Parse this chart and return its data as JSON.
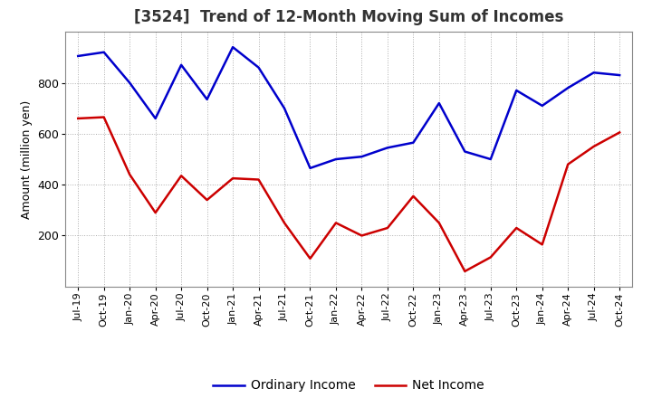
{
  "title": "[3524]  Trend of 12-Month Moving Sum of Incomes",
  "ylabel": "Amount (million yen)",
  "background_color": "#ffffff",
  "plot_bg_color": "#ffffff",
  "grid_color": "#999999",
  "ordinary_income_color": "#0000cc",
  "net_income_color": "#cc0000",
  "line_width": 1.8,
  "x_labels": [
    "Jul-19",
    "Oct-19",
    "Jan-20",
    "Apr-20",
    "Jul-20",
    "Oct-20",
    "Jan-21",
    "Apr-21",
    "Jul-21",
    "Oct-21",
    "Jan-22",
    "Apr-22",
    "Jul-22",
    "Oct-22",
    "Jan-23",
    "Apr-23",
    "Jul-23",
    "Oct-23",
    "Jan-24",
    "Apr-24",
    "Jul-24",
    "Oct-24"
  ],
  "ordinary_income": [
    905,
    920,
    800,
    660,
    870,
    735,
    940,
    860,
    700,
    465,
    500,
    510,
    545,
    565,
    720,
    530,
    500,
    770,
    710,
    780,
    840,
    830
  ],
  "net_income": [
    660,
    665,
    440,
    290,
    435,
    340,
    425,
    420,
    250,
    110,
    250,
    200,
    230,
    355,
    250,
    60,
    115,
    230,
    165,
    480,
    550,
    605
  ],
  "ylim": [
    0,
    1000
  ],
  "yticks": [
    200,
    400,
    600,
    800
  ],
  "legend_labels": [
    "Ordinary Income",
    "Net Income"
  ],
  "title_fontsize": 12,
  "tick_fontsize": 9,
  "ylabel_fontsize": 9
}
